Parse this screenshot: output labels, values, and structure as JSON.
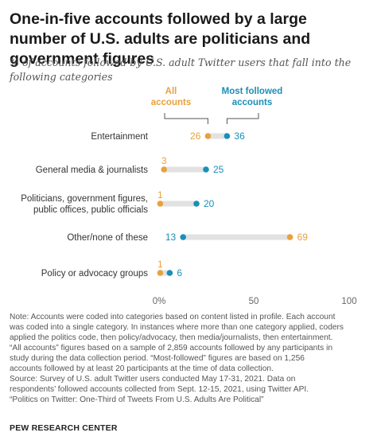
{
  "title": "One-in-five accounts followed by a large number of U.S. adults are politicians and government figures",
  "subtitle": "% of accounts followed by U.S. adult Twitter users that fall into the following categories",
  "colors": {
    "all": "#e8a13d",
    "most": "#1a8fb8",
    "bar": "#e2e2e2",
    "axis": "#666666"
  },
  "chart_data": {
    "type": "dot",
    "series": [
      {
        "name": "All accounts",
        "color": "#e8a13d"
      },
      {
        "name": "Most followed accounts",
        "color": "#1a8fb8"
      }
    ],
    "categories": [
      {
        "label": [
          "Entertainment"
        ],
        "all": 26,
        "most": 36
      },
      {
        "label": [
          "General media & journalists"
        ],
        "all": 3,
        "most": 25
      },
      {
        "label": [
          "Politicians, government figures,",
          "public offices, public officials"
        ],
        "all": 1,
        "most": 20
      },
      {
        "label": [
          "Other/none of these"
        ],
        "all": 69,
        "most": 13
      },
      {
        "label": [
          "Policy or advocacy groups"
        ],
        "all": 1,
        "most": 6
      }
    ],
    "xlim": [
      0,
      100
    ],
    "ticks": [
      0,
      50,
      100
    ],
    "tick_labels": [
      "0%",
      "50",
      "100"
    ],
    "legend": {
      "all": [
        "All",
        "accounts"
      ],
      "most": [
        "Most followed",
        "accounts"
      ]
    }
  },
  "note": [
    "Note: Accounts were coded into categories based on content listed in profile. Each account",
    "was coded into a single category. In instances where more than one category applied, coders",
    "applied the politics code, then policy/advocacy,  then media/journalists, then entertainment.",
    "“All accounts” figures based on a sample of 2,859 accounts followed by any participants in",
    "study during the data collection period. “Most-followed” figures are based on 1,256",
    "accounts followed by at least 20 participants at the time of data collection.",
    "Source: Survey of U.S. adult Twitter users conducted May 17-31, 2021. Data on",
    "respondents’ followed accounts collected from Sept. 12-15, 2021, using Twitter API.",
    "“Politics on Twitter: One-Third of Tweets From U.S. Adults Are Political”"
  ],
  "source_brand": "PEW RESEARCH CENTER"
}
